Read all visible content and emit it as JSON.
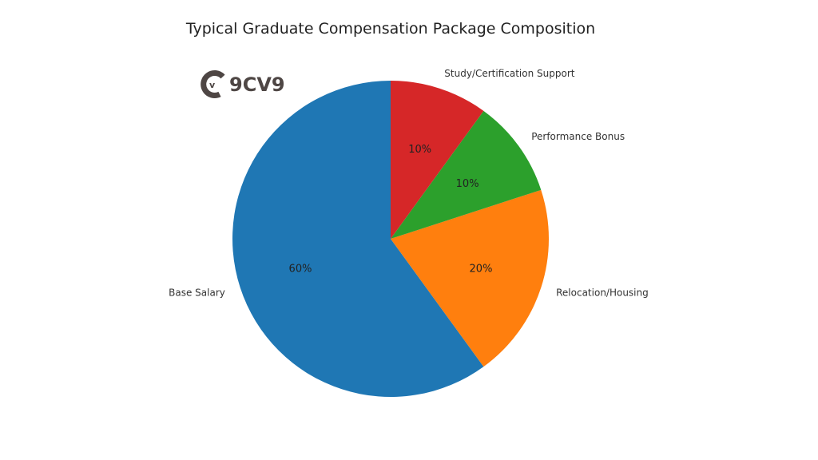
{
  "chart_data": {
    "type": "pie",
    "title": "Typical Graduate Compensation Package Composition",
    "categories": [
      "Base Salary",
      "Relocation/Housing",
      "Performance Bonus",
      "Study/Certification Support"
    ],
    "values": [
      60,
      20,
      10,
      10
    ],
    "labels_pct": [
      "60%",
      "20%",
      "10%",
      "10%"
    ],
    "colors": [
      "#1f77b4",
      "#ff7f0e",
      "#2ca02c",
      "#d62728"
    ],
    "startangle": 90,
    "direction": "counterclockwise",
    "legend": "none"
  },
  "watermark": {
    "text": "9CV9",
    "icon": "9cv9-logo-icon"
  }
}
